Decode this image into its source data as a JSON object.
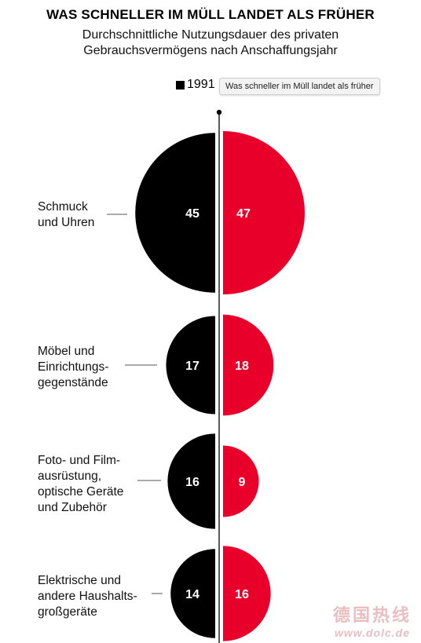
{
  "chart_data": {
    "type": "semicircle-comparison",
    "title": "WAS SCHNELLER IM MÜLL LANDET ALS FRÜHER",
    "subtitle_lines": [
      "Durchschnittliche Nutzungsdauer des privaten",
      "Gebrauchsvermögens nach Anschaffungsjahr"
    ],
    "legend": [
      {
        "name": "1991",
        "color": "#000000"
      }
    ],
    "tooltip": "Was schneller im Müll landet als früher",
    "categories": [
      "Schmuck und Uhren",
      "Möbel und Einrichtungsgegenstände",
      "Foto- und Filmausrüstung, optische Geräte und Zubehör",
      "Elektrische und andere Haushaltsgroßgeräte"
    ],
    "category_labels": [
      "Schmuck\nund  Uhren",
      "Möbel und\nEinrichtungs-\ngegenstände",
      "Foto- und Film-\nausrüstung,\noptische Geräte\nund Zubehör",
      "Elektrische  und\nandere Haushalts-\ngroßgeräte"
    ],
    "series": [
      {
        "name": "1991",
        "color": "#000000",
        "values": [
          45,
          17,
          16,
          14
        ]
      },
      {
        "color": "#e8002a",
        "values": [
          47,
          18,
          9,
          16
        ]
      }
    ]
  },
  "watermark": {
    "top": "德国热线",
    "bottom": "www.dolc.de"
  }
}
